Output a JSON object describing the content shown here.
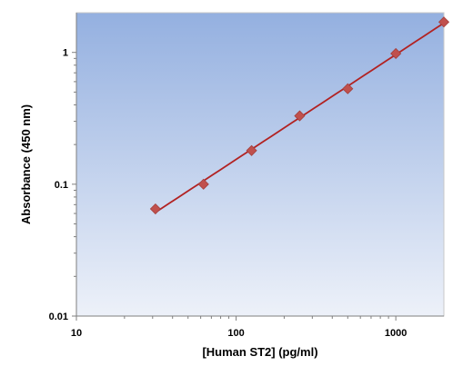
{
  "chart_data": {
    "type": "scatter",
    "title": "",
    "xlabel": "[Human ST2] (pg/ml)",
    "ylabel": "Absorbance (450 nm)",
    "x_scale": "log",
    "y_scale": "log",
    "xlim": [
      10,
      2000
    ],
    "ylim": [
      0.01,
      2
    ],
    "x_ticks": [
      10,
      100,
      1000
    ],
    "x_tick_labels": [
      "10",
      "100",
      "1000"
    ],
    "y_ticks": [
      0.01,
      0.1,
      1
    ],
    "y_tick_labels": [
      "0.01",
      "0.1",
      "1"
    ],
    "grid": false,
    "series": [
      {
        "x": [
          31.25,
          62.5,
          125,
          250,
          500,
          1000,
          2000
        ],
        "y": [
          0.065,
          0.1,
          0.18,
          0.33,
          0.53,
          0.98,
          1.7
        ],
        "marker": "diamond",
        "marker_color": "#c0504d",
        "line": "fit",
        "line_color": "#b22222"
      }
    ],
    "background_gradient": [
      "#94b0e0",
      "#edf1f9"
    ]
  }
}
